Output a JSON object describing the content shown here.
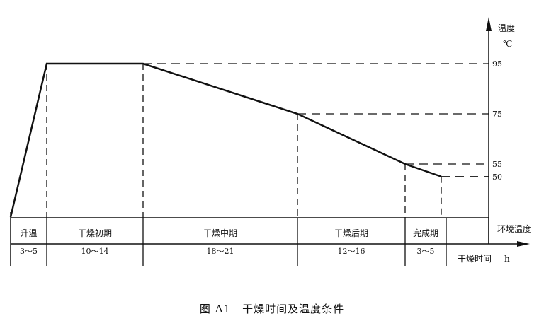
{
  "chart_data": {
    "type": "line",
    "title": "",
    "ylabel": "温度",
    "yunit": "℃",
    "xlabel": "干燥时间",
    "xunit": "h",
    "ambient_label": "环境温度",
    "y_ticks": [
      "95",
      "75",
      "55",
      "50"
    ],
    "stages": [
      {
        "name": "升温",
        "duration": "3～5"
      },
      {
        "name": "干燥初期",
        "duration": "10～14"
      },
      {
        "name": "干燥中期",
        "duration": "18～21"
      },
      {
        "name": "干燥后期",
        "duration": "12～16"
      },
      {
        "name": "完成期",
        "duration": "3～5"
      }
    ],
    "curve_temperatures": [
      "ambient",
      95,
      95,
      75,
      55,
      50
    ],
    "grid": false
  },
  "caption": "图 A1　干燥时间及温度条件"
}
